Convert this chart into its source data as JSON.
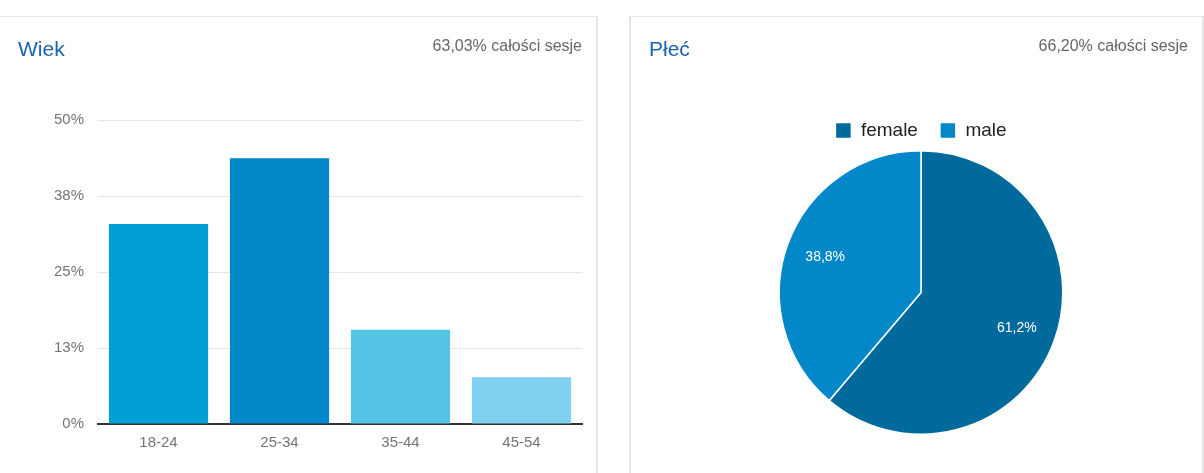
{
  "chart_data": [
    {
      "type": "bar",
      "title": "Wiek",
      "subtitle": "63,03% całości sesje",
      "categories": [
        "18-24",
        "25-34",
        "35-44",
        "45-54"
      ],
      "values": [
        32.9,
        43.7,
        15.5,
        7.7
      ],
      "colors": [
        "#00a0d6",
        "#0288c9",
        "#53c3e6",
        "#7fd1ef"
      ],
      "ylim": [
        0,
        50
      ],
      "yticks": [
        {
          "value": 0,
          "label": "0%"
        },
        {
          "value": 12.5,
          "label": "13%"
        },
        {
          "value": 25,
          "label": "25%"
        },
        {
          "value": 37.5,
          "label": "38%"
        },
        {
          "value": 50,
          "label": "50%"
        }
      ],
      "grid": "y",
      "legend": false
    },
    {
      "type": "pie",
      "title": "Płeć",
      "subtitle": "66,20% całości sesje",
      "categories": [
        "female",
        "male"
      ],
      "values": [
        61.2,
        38.8
      ],
      "colors": [
        "#006a9c",
        "#0288c9"
      ],
      "value_labels": [
        "61,2%",
        "38,8%"
      ],
      "legend": "top"
    }
  ]
}
